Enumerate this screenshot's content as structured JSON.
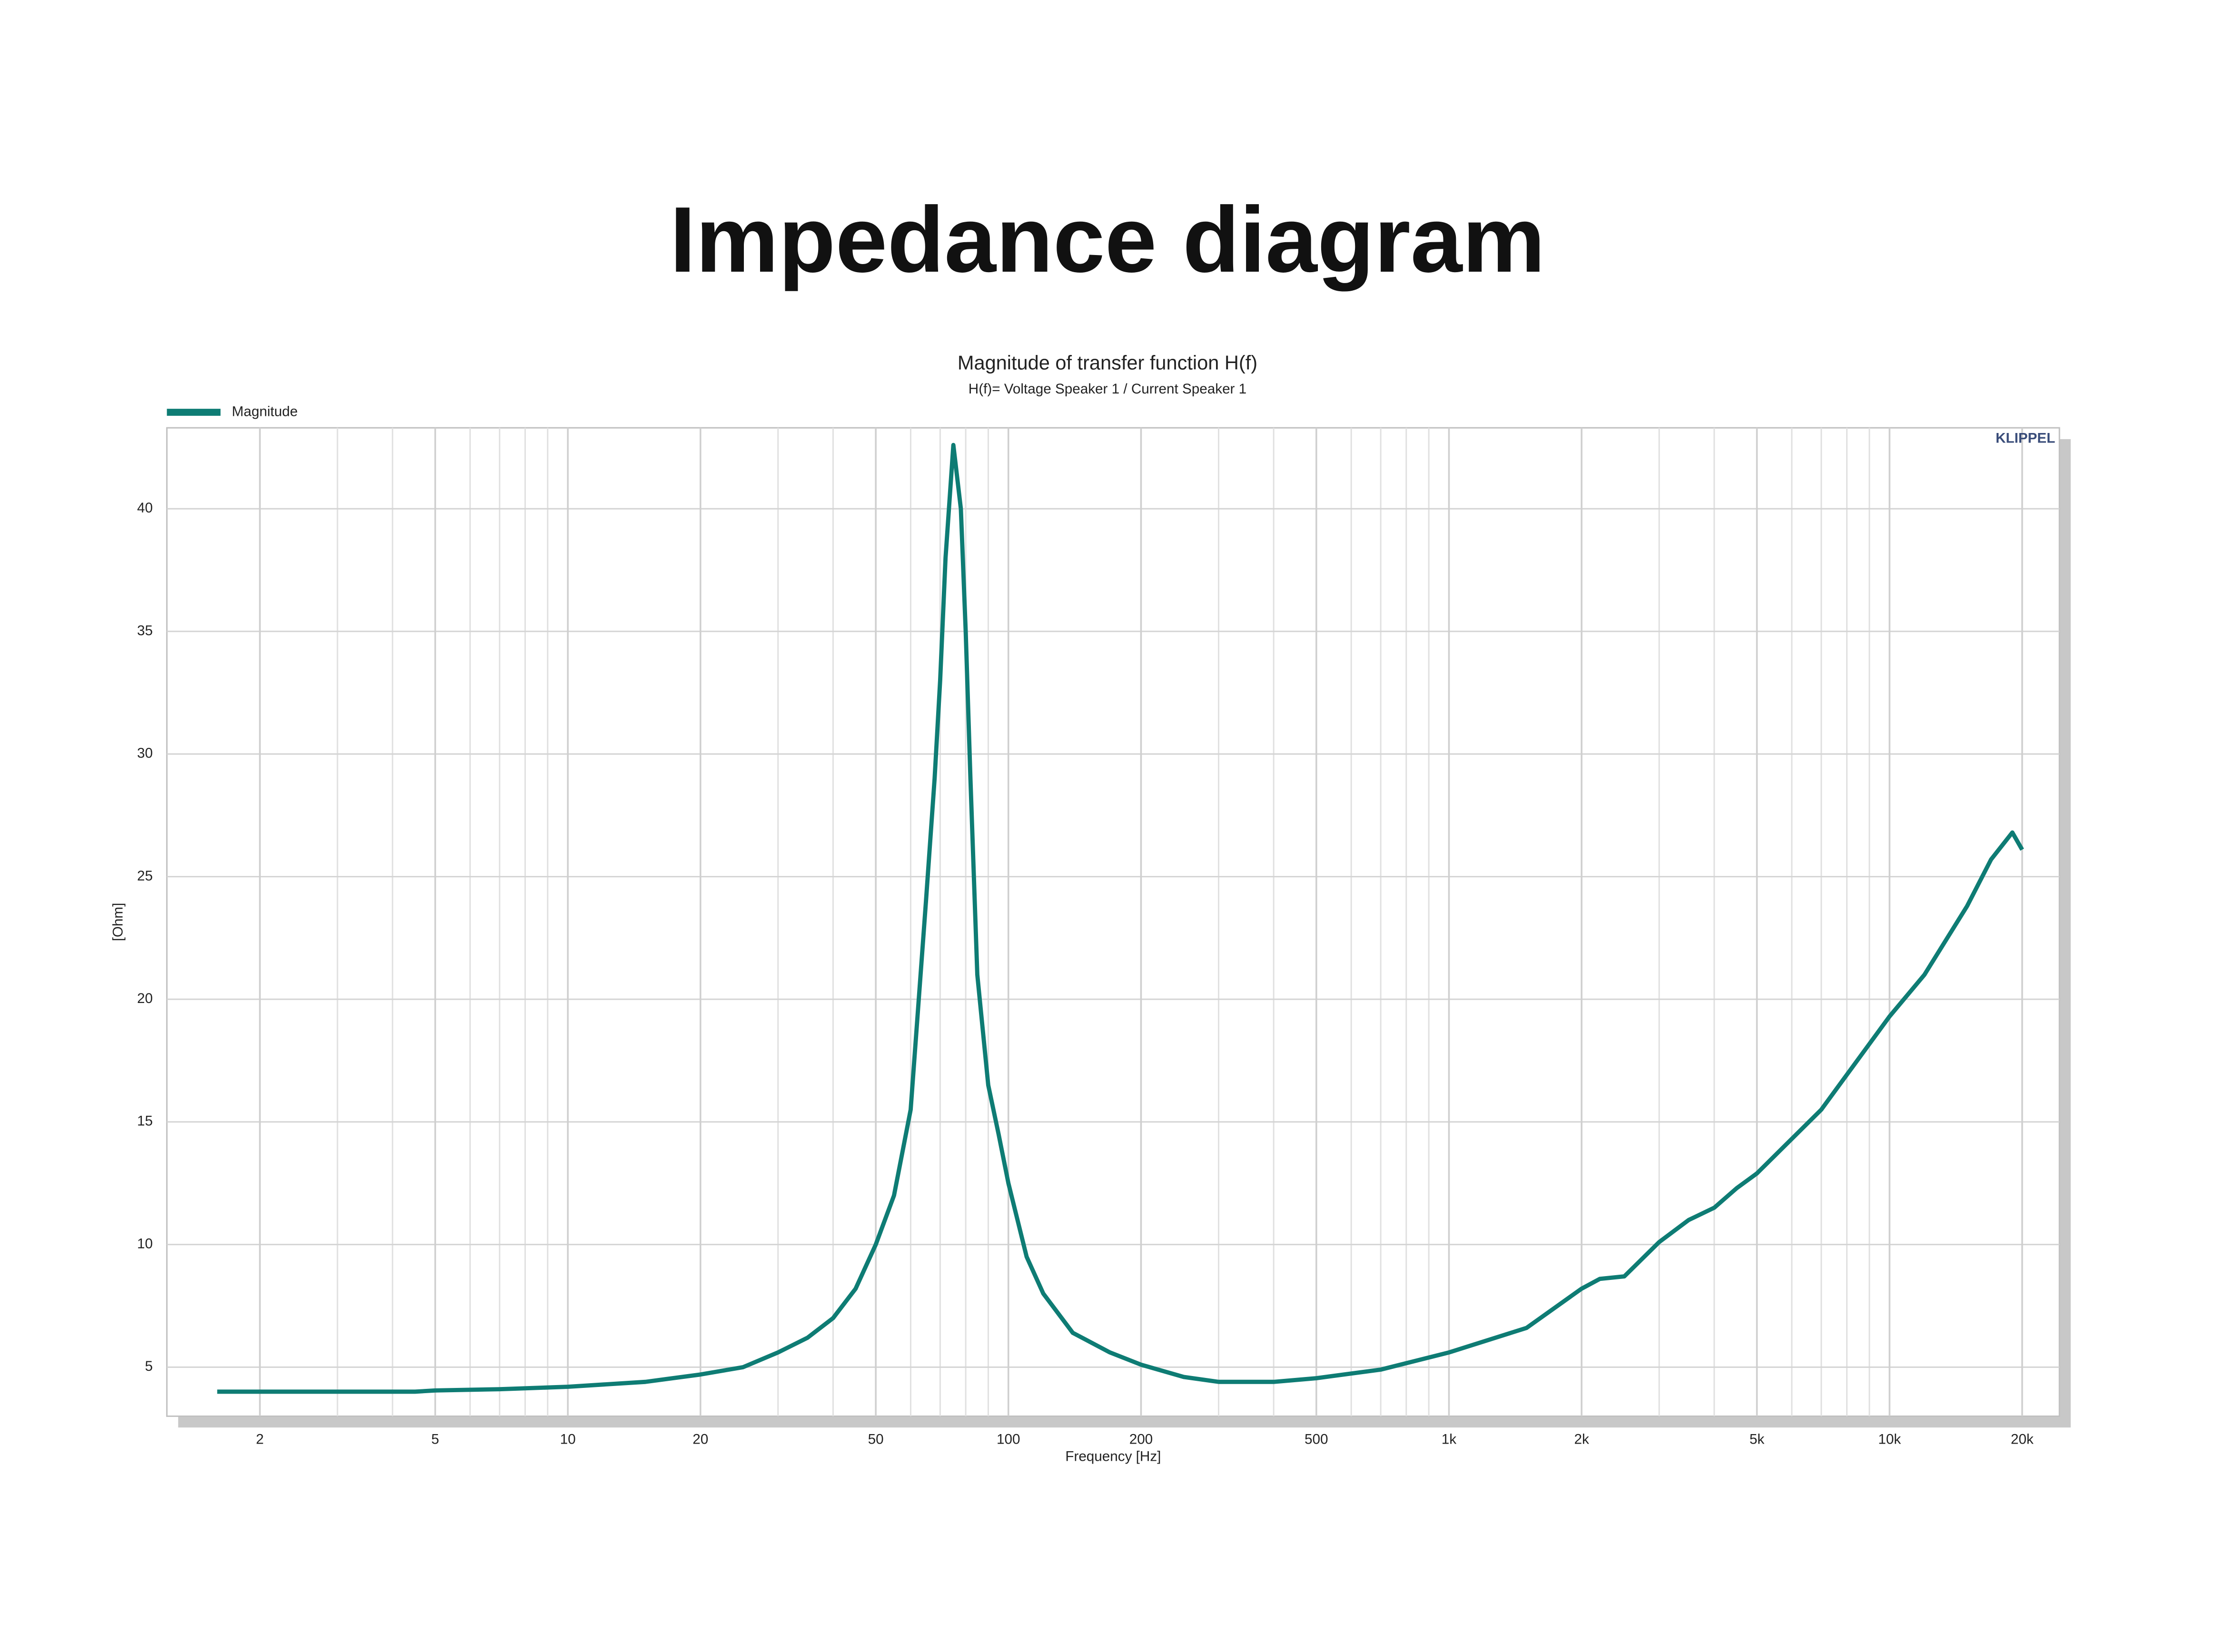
{
  "page_title": "Impedance diagram",
  "chart_data": {
    "type": "line",
    "title": "Magnitude of transfer function H(f)",
    "subtitle": "H(f)= Voltage Speaker 1 / Current Speaker 1",
    "x_label": "Frequency [Hz]",
    "y_label": "[Ohm]",
    "watermark": "KLIPPEL",
    "xscale": "log",
    "grid": true,
    "legend": "top-left",
    "xlim": [
      1.23,
      24300
    ],
    "ylim": [
      3,
      43.3
    ],
    "xticks": [
      2,
      5,
      10,
      20,
      50,
      100,
      200,
      500,
      {
        "value": 1000,
        "label": "1k"
      },
      {
        "value": 2000,
        "label": "2k"
      },
      {
        "value": 5000,
        "label": "5k"
      },
      {
        "value": 10000,
        "label": "10k"
      },
      {
        "value": 20000,
        "label": "20k"
      }
    ],
    "xminor_ticks": [
      3,
      4,
      6,
      7,
      8,
      9,
      30,
      40,
      60,
      70,
      80,
      90,
      300,
      400,
      600,
      700,
      800,
      900,
      3000,
      4000,
      6000,
      7000,
      8000,
      9000
    ],
    "yticks": [
      5,
      10,
      15,
      20,
      25,
      30,
      35,
      40
    ],
    "x": [
      1.6,
      2,
      3,
      4.5,
      5,
      7,
      10,
      15,
      20,
      25,
      30,
      35,
      40,
      45,
      50,
      55,
      60,
      65,
      68,
      70,
      72,
      75,
      78,
      80,
      82,
      85,
      90,
      95,
      100,
      110,
      120,
      140,
      170,
      200,
      250,
      300,
      400,
      500,
      700,
      1000,
      1500,
      2000,
      2200,
      2500,
      3000,
      3500,
      4000,
      4500,
      5000,
      7000,
      10000,
      12000,
      15000,
      17000,
      19000,
      20000
    ],
    "series": [
      {
        "name": "Magnitude",
        "color": "#0e7c74",
        "values": [
          4.0,
          4.0,
          4.0,
          4.0,
          4.05,
          4.1,
          4.2,
          4.4,
          4.7,
          5.0,
          5.6,
          6.2,
          7.0,
          8.2,
          10.0,
          12.0,
          15.5,
          24,
          29,
          33,
          38,
          42.6,
          40,
          35,
          29,
          21,
          16.5,
          14.5,
          12.5,
          9.5,
          8.0,
          6.4,
          5.6,
          5.1,
          4.6,
          4.4,
          4.4,
          4.55,
          4.9,
          5.6,
          6.6,
          8.2,
          8.6,
          8.7,
          10.1,
          11.0,
          11.5,
          12.3,
          12.9,
          15.5,
          19.3,
          21.0,
          23.8,
          25.7,
          26.8,
          26.1
        ]
      }
    ]
  }
}
